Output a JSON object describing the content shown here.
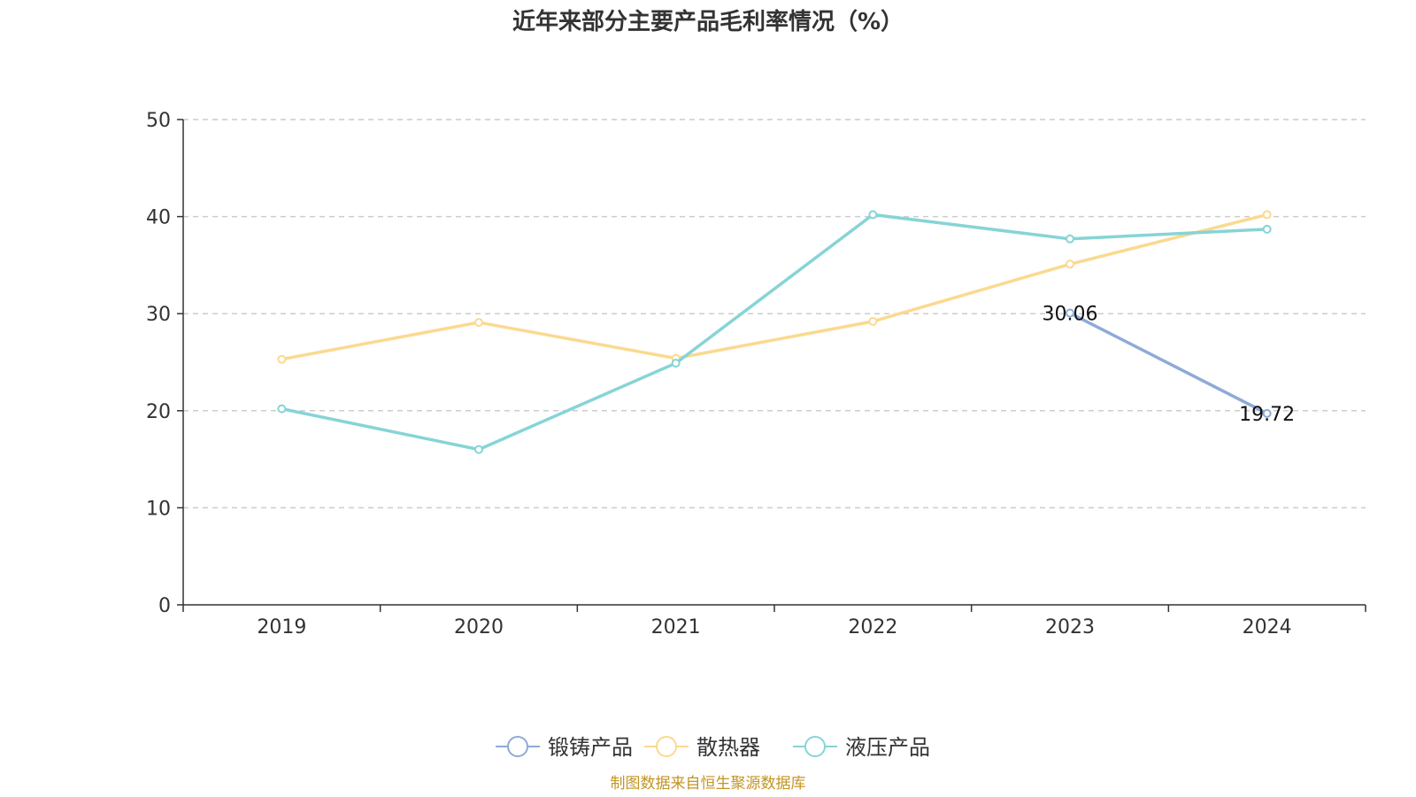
{
  "chart_data": {
    "type": "line",
    "title": "近年来部分主要产品毛利率情况（%）",
    "categories": [
      "2019",
      "2020",
      "2021",
      "2022",
      "2023",
      "2024"
    ],
    "ylim": [
      0,
      50
    ],
    "yticks": [
      "0",
      "10",
      "20",
      "30",
      "40",
      "50"
    ],
    "grid": true,
    "legend_position": "bottom-center",
    "series": [
      {
        "name": "锻铸产品",
        "color": "#8eaad8",
        "values": [
          null,
          null,
          null,
          null,
          30.06,
          19.72
        ],
        "labels": [
          null,
          null,
          null,
          null,
          "30.06",
          "19.72"
        ]
      },
      {
        "name": "散热器",
        "color": "#fbd98f",
        "values": [
          25.3,
          29.1,
          25.4,
          29.2,
          35.1,
          40.2
        ]
      },
      {
        "name": "液压产品",
        "color": "#86d4d6",
        "values": [
          20.2,
          16.0,
          24.9,
          40.2,
          37.7,
          38.7
        ]
      }
    ]
  },
  "footer": {
    "source": "制图数据来自恒生聚源数据库",
    "source_color": "#c39423"
  }
}
